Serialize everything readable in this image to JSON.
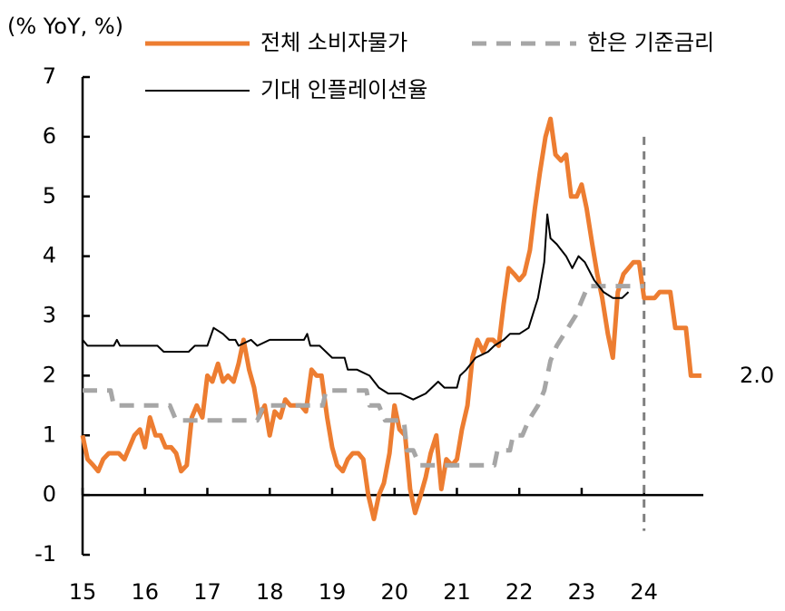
{
  "chart_data": {
    "type": "line",
    "annotations": [
      "(% YoY, %)",
      "2.0"
    ],
    "xlim": [
      15,
      24.95
    ],
    "xticks": [
      15,
      16,
      17,
      18,
      19,
      20,
      21,
      22,
      23,
      24
    ],
    "ylim": [
      -1,
      7
    ],
    "yticks": [
      -1,
      0,
      1,
      2,
      3,
      4,
      5,
      6,
      7
    ],
    "vline": 24,
    "series": [
      {
        "name": "전체 소비자물가",
        "color": "#ed7d31",
        "style": "solid",
        "x": [
          15.0,
          15.08,
          15.17,
          15.25,
          15.33,
          15.42,
          15.5,
          15.58,
          15.67,
          15.75,
          15.83,
          15.92,
          16.0,
          16.08,
          16.17,
          16.25,
          16.33,
          16.42,
          16.5,
          16.58,
          16.67,
          16.75,
          16.83,
          16.92,
          17.0,
          17.08,
          17.17,
          17.25,
          17.33,
          17.42,
          17.5,
          17.58,
          17.67,
          17.75,
          17.83,
          17.92,
          18.0,
          18.08,
          18.17,
          18.25,
          18.33,
          18.42,
          18.5,
          18.58,
          18.67,
          18.75,
          18.83,
          18.92,
          19.0,
          19.08,
          19.17,
          19.25,
          19.33,
          19.42,
          19.5,
          19.58,
          19.67,
          19.75,
          19.83,
          19.92,
          20.0,
          20.08,
          20.17,
          20.25,
          20.33,
          20.42,
          20.5,
          20.58,
          20.67,
          20.75,
          20.83,
          20.92,
          21.0,
          21.08,
          21.17,
          21.25,
          21.33,
          21.42,
          21.5,
          21.58,
          21.67,
          21.75,
          21.83,
          21.92,
          22.0,
          22.08,
          22.17,
          22.25,
          22.33,
          22.42,
          22.5,
          22.58,
          22.67,
          22.75,
          22.83,
          22.92,
          23.0,
          23.08,
          23.17,
          23.25,
          23.33,
          23.42,
          23.5,
          23.58,
          23.67,
          23.75,
          23.83,
          23.92,
          24.0,
          24.08,
          24.17,
          24.25,
          24.33,
          24.42,
          24.5,
          24.58,
          24.67,
          24.75,
          24.83,
          24.92
        ],
        "values": [
          1.0,
          0.6,
          0.5,
          0.4,
          0.6,
          0.7,
          0.7,
          0.7,
          0.6,
          0.8,
          1.0,
          1.1,
          0.8,
          1.3,
          1.0,
          1.0,
          0.8,
          0.8,
          0.7,
          0.4,
          0.5,
          1.3,
          1.5,
          1.3,
          2.0,
          1.9,
          2.2,
          1.9,
          2.0,
          1.9,
          2.2,
          2.6,
          2.1,
          1.8,
          1.3,
          1.5,
          1.0,
          1.4,
          1.3,
          1.6,
          1.5,
          1.5,
          1.5,
          1.4,
          2.1,
          2.0,
          2.0,
          1.3,
          0.8,
          0.5,
          0.4,
          0.6,
          0.7,
          0.7,
          0.6,
          0.0,
          -0.4,
          0.0,
          0.2,
          0.7,
          1.5,
          1.1,
          1.0,
          0.1,
          -0.3,
          0.0,
          0.3,
          0.7,
          1.0,
          0.1,
          0.6,
          0.5,
          0.6,
          1.1,
          1.5,
          2.3,
          2.6,
          2.4,
          2.6,
          2.6,
          2.5,
          3.2,
          3.8,
          3.7,
          3.6,
          3.7,
          4.1,
          4.8,
          5.4,
          6.0,
          6.3,
          5.7,
          5.6,
          5.7,
          5.0,
          5.0,
          5.2,
          4.8,
          4.2,
          3.7,
          3.3,
          2.7,
          2.3,
          3.4,
          3.7,
          3.8,
          3.9,
          3.9,
          3.3,
          3.3,
          3.3,
          3.4,
          3.4,
          3.4,
          2.8,
          2.8,
          2.8,
          2.0,
          2.0,
          2.0
        ]
      },
      {
        "name": "한은 기준금리",
        "color": "#a6a6a6",
        "style": "dashed",
        "x": [
          15.0,
          15.45,
          15.5,
          16.4,
          16.5,
          17.8,
          17.9,
          18.85,
          18.9,
          19.55,
          19.6,
          19.75,
          19.85,
          20.15,
          20.2,
          20.3,
          20.4,
          21.6,
          21.65,
          21.85,
          21.9,
          22.05,
          22.15,
          22.3,
          22.4,
          22.5,
          22.6,
          22.75,
          22.9,
          23.0,
          23.1,
          24.0
        ],
        "values": [
          1.75,
          1.75,
          1.5,
          1.5,
          1.25,
          1.25,
          1.5,
          1.5,
          1.75,
          1.75,
          1.5,
          1.5,
          1.25,
          1.25,
          0.75,
          0.75,
          0.5,
          0.5,
          0.75,
          0.75,
          1.0,
          1.0,
          1.25,
          1.5,
          1.75,
          2.25,
          2.5,
          2.75,
          3.0,
          3.25,
          3.5,
          3.5
        ]
      },
      {
        "name": "기대 인플레이션율",
        "color": "#000000",
        "style": "thin",
        "x": [
          15.0,
          15.08,
          15.5,
          15.55,
          15.6,
          16.2,
          16.3,
          16.7,
          16.8,
          17.0,
          17.1,
          17.25,
          17.35,
          17.45,
          17.5,
          17.7,
          17.8,
          18.0,
          18.55,
          18.6,
          18.65,
          18.8,
          19.0,
          19.2,
          19.25,
          19.4,
          19.6,
          19.75,
          19.9,
          20.0,
          20.1,
          20.3,
          20.5,
          20.7,
          20.8,
          21.0,
          21.05,
          21.15,
          21.3,
          21.5,
          21.6,
          21.75,
          21.85,
          22.0,
          22.15,
          22.3,
          22.4,
          22.45,
          22.5,
          22.6,
          22.75,
          22.85,
          22.95,
          23.05,
          23.2,
          23.35,
          23.5,
          23.65,
          23.75
        ],
        "values": [
          2.6,
          2.5,
          2.5,
          2.6,
          2.5,
          2.5,
          2.4,
          2.4,
          2.5,
          2.5,
          2.8,
          2.7,
          2.6,
          2.6,
          2.5,
          2.6,
          2.5,
          2.6,
          2.6,
          2.7,
          2.5,
          2.5,
          2.3,
          2.3,
          2.1,
          2.1,
          2.0,
          1.8,
          1.7,
          1.7,
          1.7,
          1.6,
          1.7,
          1.9,
          1.8,
          1.8,
          2.0,
          2.1,
          2.3,
          2.4,
          2.5,
          2.6,
          2.7,
          2.7,
          2.8,
          3.3,
          3.9,
          4.7,
          4.3,
          4.2,
          4.0,
          3.8,
          4.0,
          3.9,
          3.6,
          3.4,
          3.3,
          3.3,
          3.4
        ]
      }
    ]
  }
}
